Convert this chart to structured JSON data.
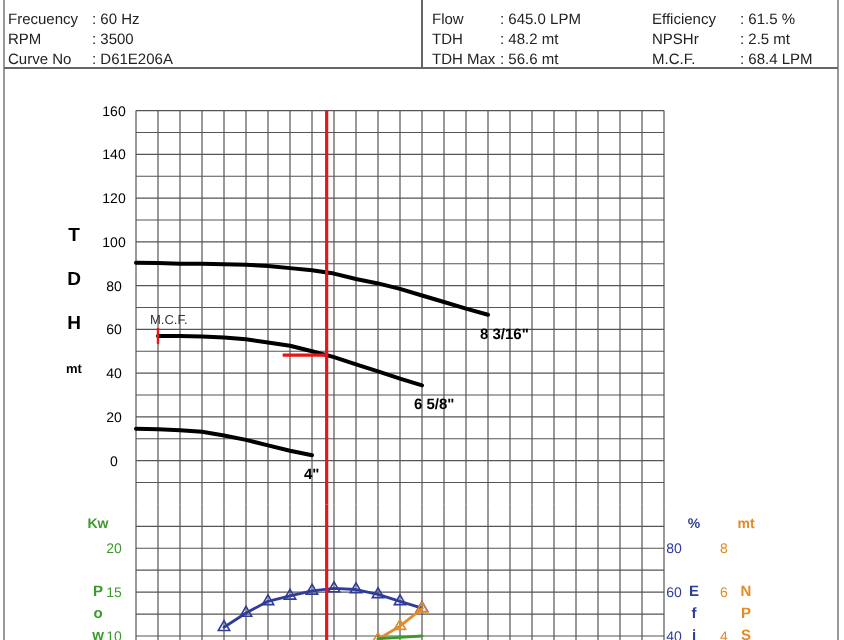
{
  "chart_data": [
    {
      "type": "line",
      "ylabel": "T D H mt",
      "annotations": [
        "Frecuency",
        ": 60 Hz",
        "RPM",
        ": 3500",
        "Curve No",
        ": D61E206A",
        "Flow",
        ": 645.0 LPM",
        "TDH",
        ": 48.2 mt",
        "TDH Max",
        ": 56.6 mt",
        "Efficiency",
        ": 61.5 %",
        "NPSHr",
        ": 2.5 mt",
        "M.C.F.",
        ": 68.4 LPM",
        {
          "text": "M.C.F.",
          "y": 57
        }
      ],
      "categories": [
        null,
        null,
        null,
        null,
        null,
        null,
        null,
        null,
        null,
        null,
        null,
        null,
        null,
        null,
        null,
        null,
        null,
        null,
        null,
        null,
        null,
        null,
        null,
        null,
        null
      ],
      "ylim": [
        -20,
        160
      ],
      "yticks": [
        {
          "value": -10,
          "label": null
        },
        0,
        {
          "value": 10,
          "label": null
        },
        20,
        {
          "value": 30,
          "label": null
        },
        40,
        {
          "value": 50,
          "label": null
        },
        60,
        {
          "value": 70,
          "label": null
        },
        80,
        {
          "value": 90,
          "label": null
        },
        100,
        {
          "value": 110,
          "label": null
        },
        120,
        {
          "value": 130,
          "label": null
        },
        140,
        {
          "value": 150,
          "label": null
        },
        160
      ],
      "grid": true,
      "tick_labels": "y",
      "marker": "none",
      "line_style": "solid",
      "ref_lines": [
        {
          "axis": "y",
          "value": 48.2,
          "color": "#e8141c"
        }
      ],
      "series": [
        {
          "name": "8 3/16\"",
          "color": "#000000",
          "values": [
            90.5,
            90.3,
            90,
            90,
            89.8,
            89.5,
            89,
            88,
            87,
            85.5,
            83,
            81,
            78.5,
            75.5,
            72.5,
            69.5,
            66.7,
            null,
            null,
            null,
            null,
            null,
            null,
            null,
            null
          ]
        },
        {
          "name": "6 5/8\"",
          "color": "#000000",
          "values": [
            null,
            57,
            57,
            56.8,
            56.3,
            55.5,
            54,
            52.5,
            50,
            47.3,
            44,
            40.8,
            37.5,
            34.4,
            null,
            null,
            null,
            null,
            null,
            null,
            null,
            null,
            null,
            null,
            null
          ]
        },
        {
          "name": "4\"",
          "color": "#000000",
          "values": [
            14.6,
            14.4,
            13.9,
            13.2,
            11.5,
            9.5,
            7,
            4.5,
            2.5,
            null,
            null,
            null,
            null,
            null,
            null,
            null,
            null,
            null,
            null,
            null,
            null,
            null,
            null,
            null,
            null
          ]
        }
      ]
    },
    {
      "type": "line",
      "ylabel": "Kw P o w",
      "y2label": "% E f i c",
      "y3label": "mt N P S H",
      "categories": [
        null,
        null,
        null,
        null,
        null,
        null,
        null,
        null,
        null,
        null,
        null,
        null,
        null,
        null,
        null,
        null,
        null,
        null,
        null,
        null,
        null,
        null,
        null,
        null,
        null
      ],
      "ylim": [
        9.5,
        25
      ],
      "yticks": [
        10,
        {
          "value": 12.5,
          "label": null
        },
        15,
        {
          "value": 17.5,
          "label": null
        },
        20,
        {
          "value": 22.5,
          "label": null
        }
      ],
      "y2lim": [
        38,
        100
      ],
      "y2ticks": [
        40,
        60,
        80
      ],
      "y3lim": [
        3.8,
        10
      ],
      "y3ticks": [
        4,
        6,
        8
      ],
      "grid": true,
      "tick_labels": "y",
      "line_style": "solid",
      "series": [
        {
          "color": "#2e3d9a",
          "axis": "y2",
          "marker": "triangle",
          "values": [
            null,
            null,
            null,
            null,
            44,
            50.5,
            55.8,
            58.3,
            60.6,
            61.7,
            61.2,
            59,
            55.8,
            52.7,
            null,
            null,
            null,
            null,
            null,
            null,
            null,
            null,
            null,
            null,
            null
          ]
        },
        {
          "color": "#e38a2b",
          "axis": "y3",
          "marker": "triangle",
          "values": [
            null,
            null,
            null,
            null,
            null,
            null,
            null,
            null,
            null,
            null,
            null,
            3.85,
            4.45,
            5.25,
            null,
            null,
            null,
            null,
            null,
            null,
            null,
            null,
            null,
            null,
            null
          ]
        },
        {
          "color": "#3c9a2c",
          "axis": "y",
          "marker": "none",
          "values": [
            null,
            null,
            null,
            null,
            null,
            null,
            null,
            null,
            null,
            null,
            null,
            9.7,
            9.85,
            10,
            null,
            null,
            null,
            null,
            null,
            null,
            null,
            null,
            null,
            null,
            null
          ]
        }
      ]
    }
  ]
}
